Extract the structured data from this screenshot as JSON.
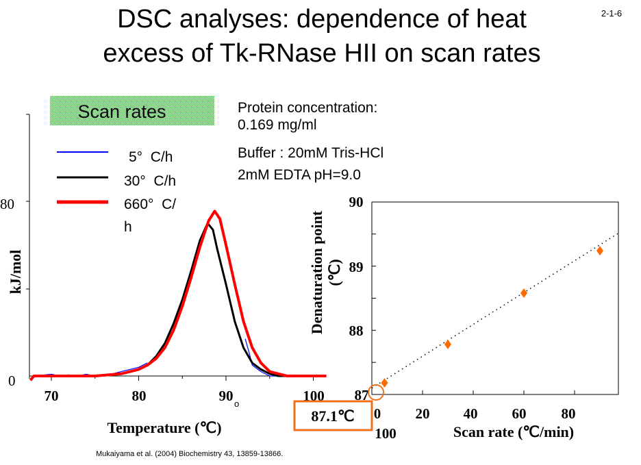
{
  "slide": {
    "number": "2-1-6",
    "title_line1": "DSC analyses: dependence of heat",
    "title_line2": "excess of Tk-RNase HII on scan rates",
    "citation": "Mukaiyama et al. (2004) Biochemistry 43, 13859-13866."
  },
  "info": {
    "protein_label": "Protein concentration:",
    "protein_value": "0.169 mg/ml",
    "buffer_line1": "Buffer : 20mM Tris-HCl",
    "buffer_line2": "2mM EDTA pH=9.0"
  },
  "legend": {
    "title": "Scan rates",
    "items": [
      {
        "label": "5°  C/h",
        "color": "#0000ff"
      },
      {
        "label": "30°  C/h",
        "color": "#000000"
      },
      {
        "label": "660°  C/",
        "label_wrap": "h",
        "color": "#ff0000"
      }
    ]
  },
  "callout": {
    "value": "87.1℃",
    "color": "#f07018"
  },
  "chart_data": [
    {
      "type": "line",
      "title": "",
      "xlabel": "Temperature (℃)",
      "xlabel_suffix": "o",
      "ylabel": "kJ/mol",
      "xlim": [
        67.5,
        101.5
      ],
      "ylim": [
        0,
        120
      ],
      "xticks": [
        "70",
        "80",
        "90",
        "100"
      ],
      "yticks": [
        "0",
        "80"
      ],
      "grid": false,
      "legend": "top-left",
      "series": [
        {
          "name": "5° C/h",
          "color": "#0000ff",
          "segments": [
            [
              [
                68,
                0
              ],
              [
                70,
                0.8
              ],
              [
                71,
                0
              ],
              [
                72,
                0.5
              ],
              [
                73,
                0
              ],
              [
                74,
                0.8
              ],
              [
                75,
                0
              ],
              [
                76,
                0.5
              ],
              [
                77,
                1
              ],
              [
                78,
                2
              ],
              [
                79,
                3
              ],
              [
                80,
                4
              ],
              [
                81,
                6
              ]
            ],
            [
              [
                92.2,
                17
              ],
              [
                92.7,
                10
              ],
              [
                93,
                5
              ],
              [
                94,
                2
              ],
              [
                95,
                0
              ],
              [
                96,
                0
              ],
              [
                97,
                0
              ]
            ]
          ]
        },
        {
          "name": "30° C/h",
          "color": "#000000",
          "segments": [
            [
              [
                68,
                0
              ],
              [
                75,
                0
              ],
              [
                78,
                1
              ],
              [
                80,
                3
              ],
              [
                81,
                5
              ],
              [
                82,
                9
              ],
              [
                83,
                15
              ],
              [
                84,
                24
              ],
              [
                85,
                35
              ],
              [
                86,
                48
              ],
              [
                87,
                62
              ],
              [
                87.9,
                70
              ],
              [
                88.5,
                67
              ],
              [
                89,
                58
              ],
              [
                90,
                42
              ],
              [
                91,
                25
              ],
              [
                92,
                13
              ],
              [
                93,
                6
              ],
              [
                94,
                3
              ],
              [
                95,
                1
              ],
              [
                96,
                0
              ],
              [
                101,
                0
              ]
            ]
          ]
        },
        {
          "name": "660° C/h",
          "color": "#ff0000",
          "segments": [
            [
              [
                67.6,
                -2
              ],
              [
                68,
                0
              ],
              [
                75,
                0
              ],
              [
                78,
                1
              ],
              [
                80,
                3
              ],
              [
                81,
                5
              ],
              [
                82,
                8
              ],
              [
                83,
                13
              ],
              [
                84,
                21
              ],
              [
                85,
                32
              ],
              [
                86,
                45
              ],
              [
                87,
                59
              ],
              [
                88,
                71
              ],
              [
                88.7,
                75.5
              ],
              [
                89.3,
                72
              ],
              [
                90,
                60
              ],
              [
                91,
                42
              ],
              [
                92,
                25
              ],
              [
                93,
                13
              ],
              [
                94,
                6
              ],
              [
                95,
                2
              ],
              [
                96,
                1
              ],
              [
                97,
                0
              ],
              [
                101.5,
                0
              ]
            ]
          ]
        }
      ]
    },
    {
      "type": "scatter",
      "title": "",
      "xlabel": "Scan rate (℃/min)",
      "ylabel": "Denaturation point",
      "ylabel_unit": "(℃)",
      "xlim": [
        0,
        97
      ],
      "ylim": [
        87,
        90
      ],
      "xticks": [
        "0",
        "20",
        "40",
        "60",
        "80"
      ],
      "xtick_extra": "100",
      "yticks": [
        "87",
        "88",
        "89",
        "90"
      ],
      "grid": false,
      "marker_color": "#ff6a00",
      "points": [
        [
          5,
          87.18
        ],
        [
          30,
          87.78
        ],
        [
          60,
          88.58
        ],
        [
          90,
          89.24
        ]
      ],
      "fit_line": {
        "intercept": 87.1,
        "slope": 0.0248,
        "style": "dotted"
      },
      "highlight_intercept": 87.1
    }
  ]
}
